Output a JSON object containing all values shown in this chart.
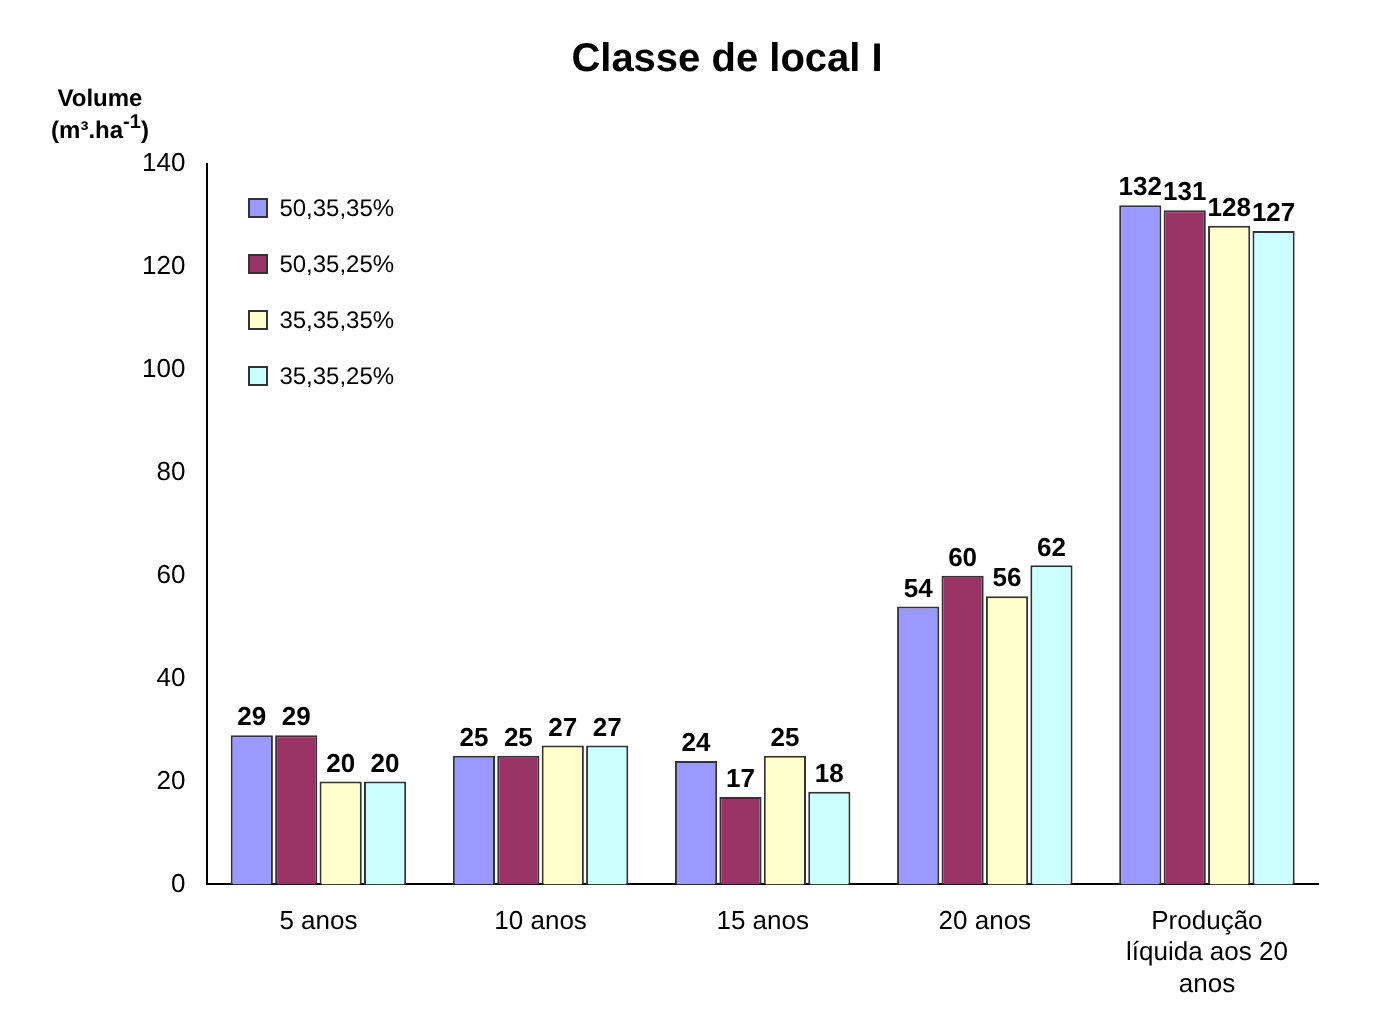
{
  "chart_data": {
    "type": "bar",
    "title": "Classe de local I",
    "ylabel": "Volume (m³.ha$^{-1}$)",
    "categories": [
      "5 anos",
      "10 anos",
      "15 anos",
      "20 anos",
      "Produção líquida aos 20 anos"
    ],
    "series": [
      {
        "name": "50,35,35%",
        "color": "#9999ff",
        "values": [
          29,
          25,
          24,
          54,
          132
        ]
      },
      {
        "name": "50,35,25%",
        "color": "#993366",
        "values": [
          29,
          25,
          17,
          60,
          131
        ]
      },
      {
        "name": "35,35,35%",
        "color": "#ffffcc",
        "values": [
          20,
          27,
          25,
          56,
          128
        ]
      },
      {
        "name": "35,35,25%",
        "color": "#ccffff",
        "values": [
          20,
          27,
          18,
          62,
          127
        ]
      }
    ],
    "ylim": [
      0,
      140
    ],
    "yticks": [
      0,
      20,
      40,
      60,
      80,
      100,
      120,
      140
    ],
    "grid": false,
    "legend": "top left",
    "data_labels": true
  }
}
